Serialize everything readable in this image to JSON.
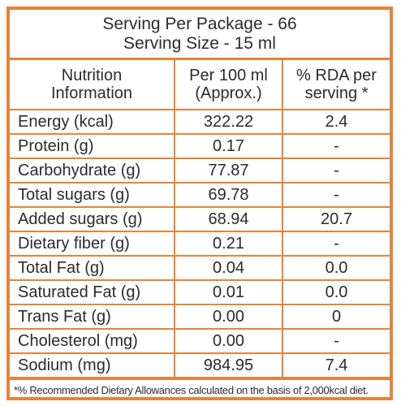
{
  "serving": {
    "per_package": "Serving Per Package - 66",
    "size": "Serving Size - 15 ml"
  },
  "headers": {
    "col1_line1": "Nutrition",
    "col1_line2": "Information",
    "col2_line1": "Per 100 ml",
    "col2_line2": "(Approx.)",
    "col3_line1": "% RDA per",
    "col3_line2": "serving *"
  },
  "rows": [
    {
      "name": "Energy (kcal)",
      "per100": "322.22",
      "rda": "2.4"
    },
    {
      "name": "Protein (g)",
      "per100": "0.17",
      "rda": "-"
    },
    {
      "name": "Carbohydrate (g)",
      "per100": "77.87",
      "rda": "-"
    },
    {
      "name": "Total sugars (g)",
      "per100": "69.78",
      "rda": "-"
    },
    {
      "name": "Added sugars (g)",
      "per100": "68.94",
      "rda": "20.7"
    },
    {
      "name": "Dietary fiber (g)",
      "per100": "0.21",
      "rda": "-"
    },
    {
      "name": "Total Fat (g)",
      "per100": "0.04",
      "rda": "0.0"
    },
    {
      "name": "Saturated Fat (g)",
      "per100": "0.01",
      "rda": "0.0"
    },
    {
      "name": "Trans Fat (g)",
      "per100": "0.00",
      "rda": "0"
    },
    {
      "name": "Cholesterol (mg)",
      "per100": "0.00",
      "rda": "-"
    },
    {
      "name": "Sodium (mg)",
      "per100": "984.95",
      "rda": "7.4"
    }
  ],
  "footnote": "*% Recommended Dietary Allowances calculated on the basis of 2,000kcal diet.",
  "colors": {
    "border": "#e8823a",
    "text": "#2b2b2b"
  }
}
